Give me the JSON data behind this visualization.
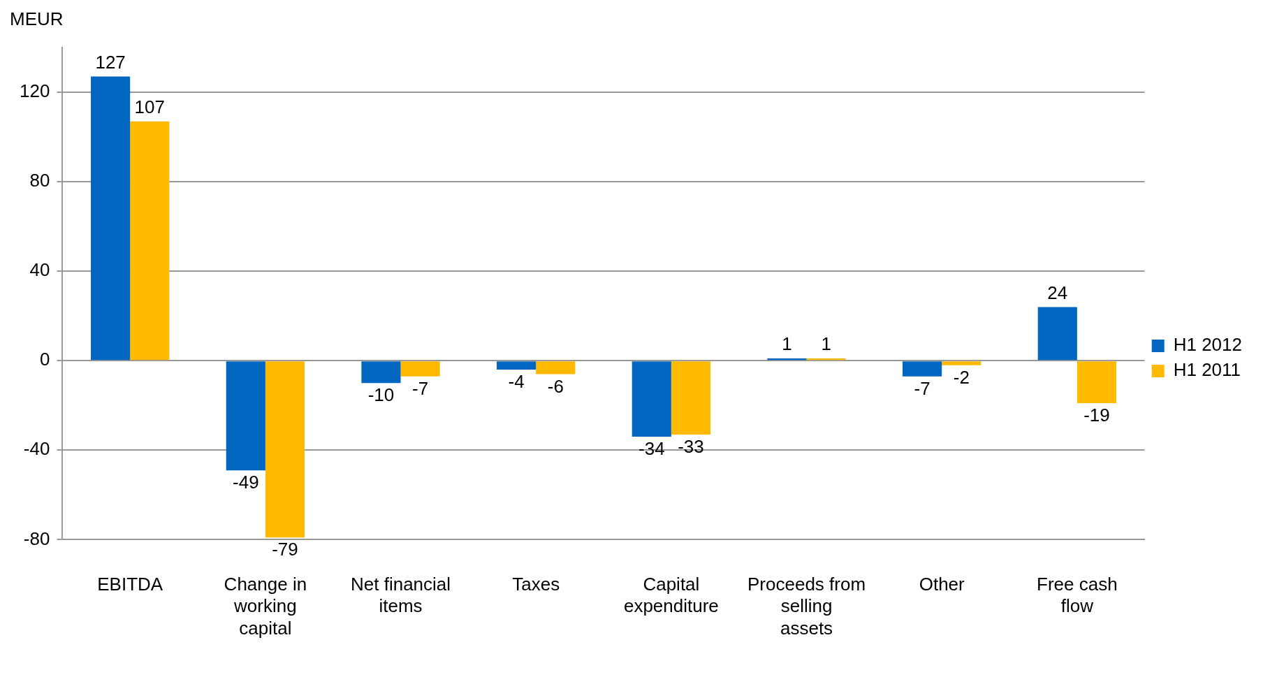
{
  "chart_data": {
    "type": "bar",
    "ylabel": "MEUR",
    "categories": [
      "EBITDA",
      "Change in working capital",
      "Net financial items",
      "Taxes",
      "Capital expenditure",
      "Proceeds from selling assets",
      "Other",
      "Free cash flow"
    ],
    "series": [
      {
        "name": "H1 2012",
        "color": "#0066c0",
        "values": [
          127,
          -49,
          -10,
          -4,
          -34,
          1,
          -7,
          24
        ]
      },
      {
        "name": "H1 2011",
        "color": "#ffb900",
        "values": [
          107,
          -79,
          -7,
          -6,
          -33,
          1,
          -2,
          -19
        ]
      }
    ],
    "ylim": [
      -80,
      140
    ],
    "yticks": [
      -80,
      -40,
      0,
      40,
      80,
      120
    ],
    "grid": "y",
    "legend": "right",
    "data_labels": true
  }
}
